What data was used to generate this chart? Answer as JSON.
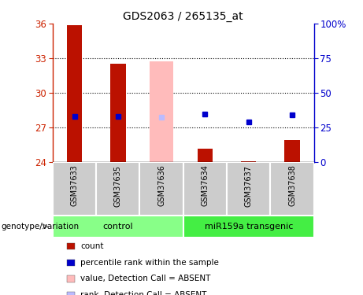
{
  "title": "GDS2063 / 265135_at",
  "samples": [
    "GSM37633",
    "GSM37635",
    "GSM37636",
    "GSM37634",
    "GSM37637",
    "GSM37638"
  ],
  "ylim_left": [
    24,
    36
  ],
  "ylim_right": [
    0,
    100
  ],
  "yticks_left": [
    24,
    27,
    30,
    33,
    36
  ],
  "yticks_right": [
    0,
    25,
    50,
    75,
    100
  ],
  "ytick_labels_right": [
    "0",
    "25",
    "50",
    "75",
    "100%"
  ],
  "bar_data": {
    "GSM37633": {
      "count": 35.85,
      "rank": 28.0,
      "absent_value": null,
      "absent_rank": null
    },
    "GSM37635": {
      "count": 32.55,
      "rank": 28.0,
      "absent_value": null,
      "absent_rank": null
    },
    "GSM37636": {
      "count": null,
      "rank": null,
      "absent_value": 32.7,
      "absent_rank": 27.9
    },
    "GSM37634": {
      "count": 25.2,
      "rank": 28.2,
      "absent_value": null,
      "absent_rank": null
    },
    "GSM37637": {
      "count": 24.1,
      "rank": 27.5,
      "absent_value": null,
      "absent_rank": null
    },
    "GSM37638": {
      "count": 25.9,
      "rank": 28.1,
      "absent_value": null,
      "absent_rank": null
    }
  },
  "bar_bottom": 24,
  "count_bar_width": 0.35,
  "absent_bar_width": 0.55,
  "count_color": "#bb1100",
  "rank_color": "#0000cc",
  "absent_value_color": "#ffbbbb",
  "absent_rank_color": "#bbbbff",
  "control_bg": "#88ff88",
  "transgenic_bg": "#44ee44",
  "sample_bg": "#cccccc",
  "group_label_control": "control",
  "group_label_transgenic": "miR159a transgenic",
  "legend_items": [
    {
      "label": "count",
      "color": "#bb1100"
    },
    {
      "label": "percentile rank within the sample",
      "color": "#0000cc"
    },
    {
      "label": "value, Detection Call = ABSENT",
      "color": "#ffbbbb"
    },
    {
      "label": "rank, Detection Call = ABSENT",
      "color": "#bbbbff"
    }
  ]
}
